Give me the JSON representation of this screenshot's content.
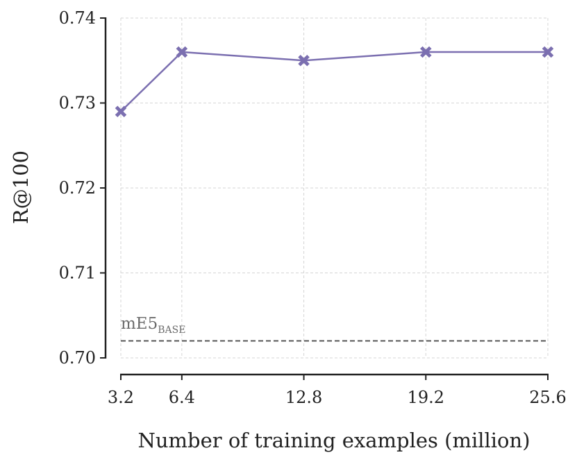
{
  "chart_data": {
    "type": "line",
    "title": "",
    "xlabel": "Number of training examples (million)",
    "ylabel": "R@100",
    "x": [
      3.2,
      6.4,
      12.8,
      19.2,
      25.6
    ],
    "x_tick_labels": [
      "3.2",
      "6.4",
      "12.8",
      "19.2",
      "25.6"
    ],
    "y_ticks": [
      0.7,
      0.71,
      0.72,
      0.73,
      0.74
    ],
    "y_tick_labels": [
      "0.70",
      "0.71",
      "0.72",
      "0.73",
      "0.74"
    ],
    "xlim": [
      3.2,
      25.6
    ],
    "ylim": [
      0.7,
      0.74
    ],
    "grid": true,
    "series": [
      {
        "values": [
          0.729,
          0.736,
          0.735,
          0.736,
          0.736
        ],
        "color": "#7b6fb0",
        "marker": "x-marker"
      }
    ],
    "reference_line": {
      "value": 0.702,
      "label_main": "mE5",
      "label_sub": "BASE",
      "color": "#555555",
      "style": "dashed"
    }
  }
}
